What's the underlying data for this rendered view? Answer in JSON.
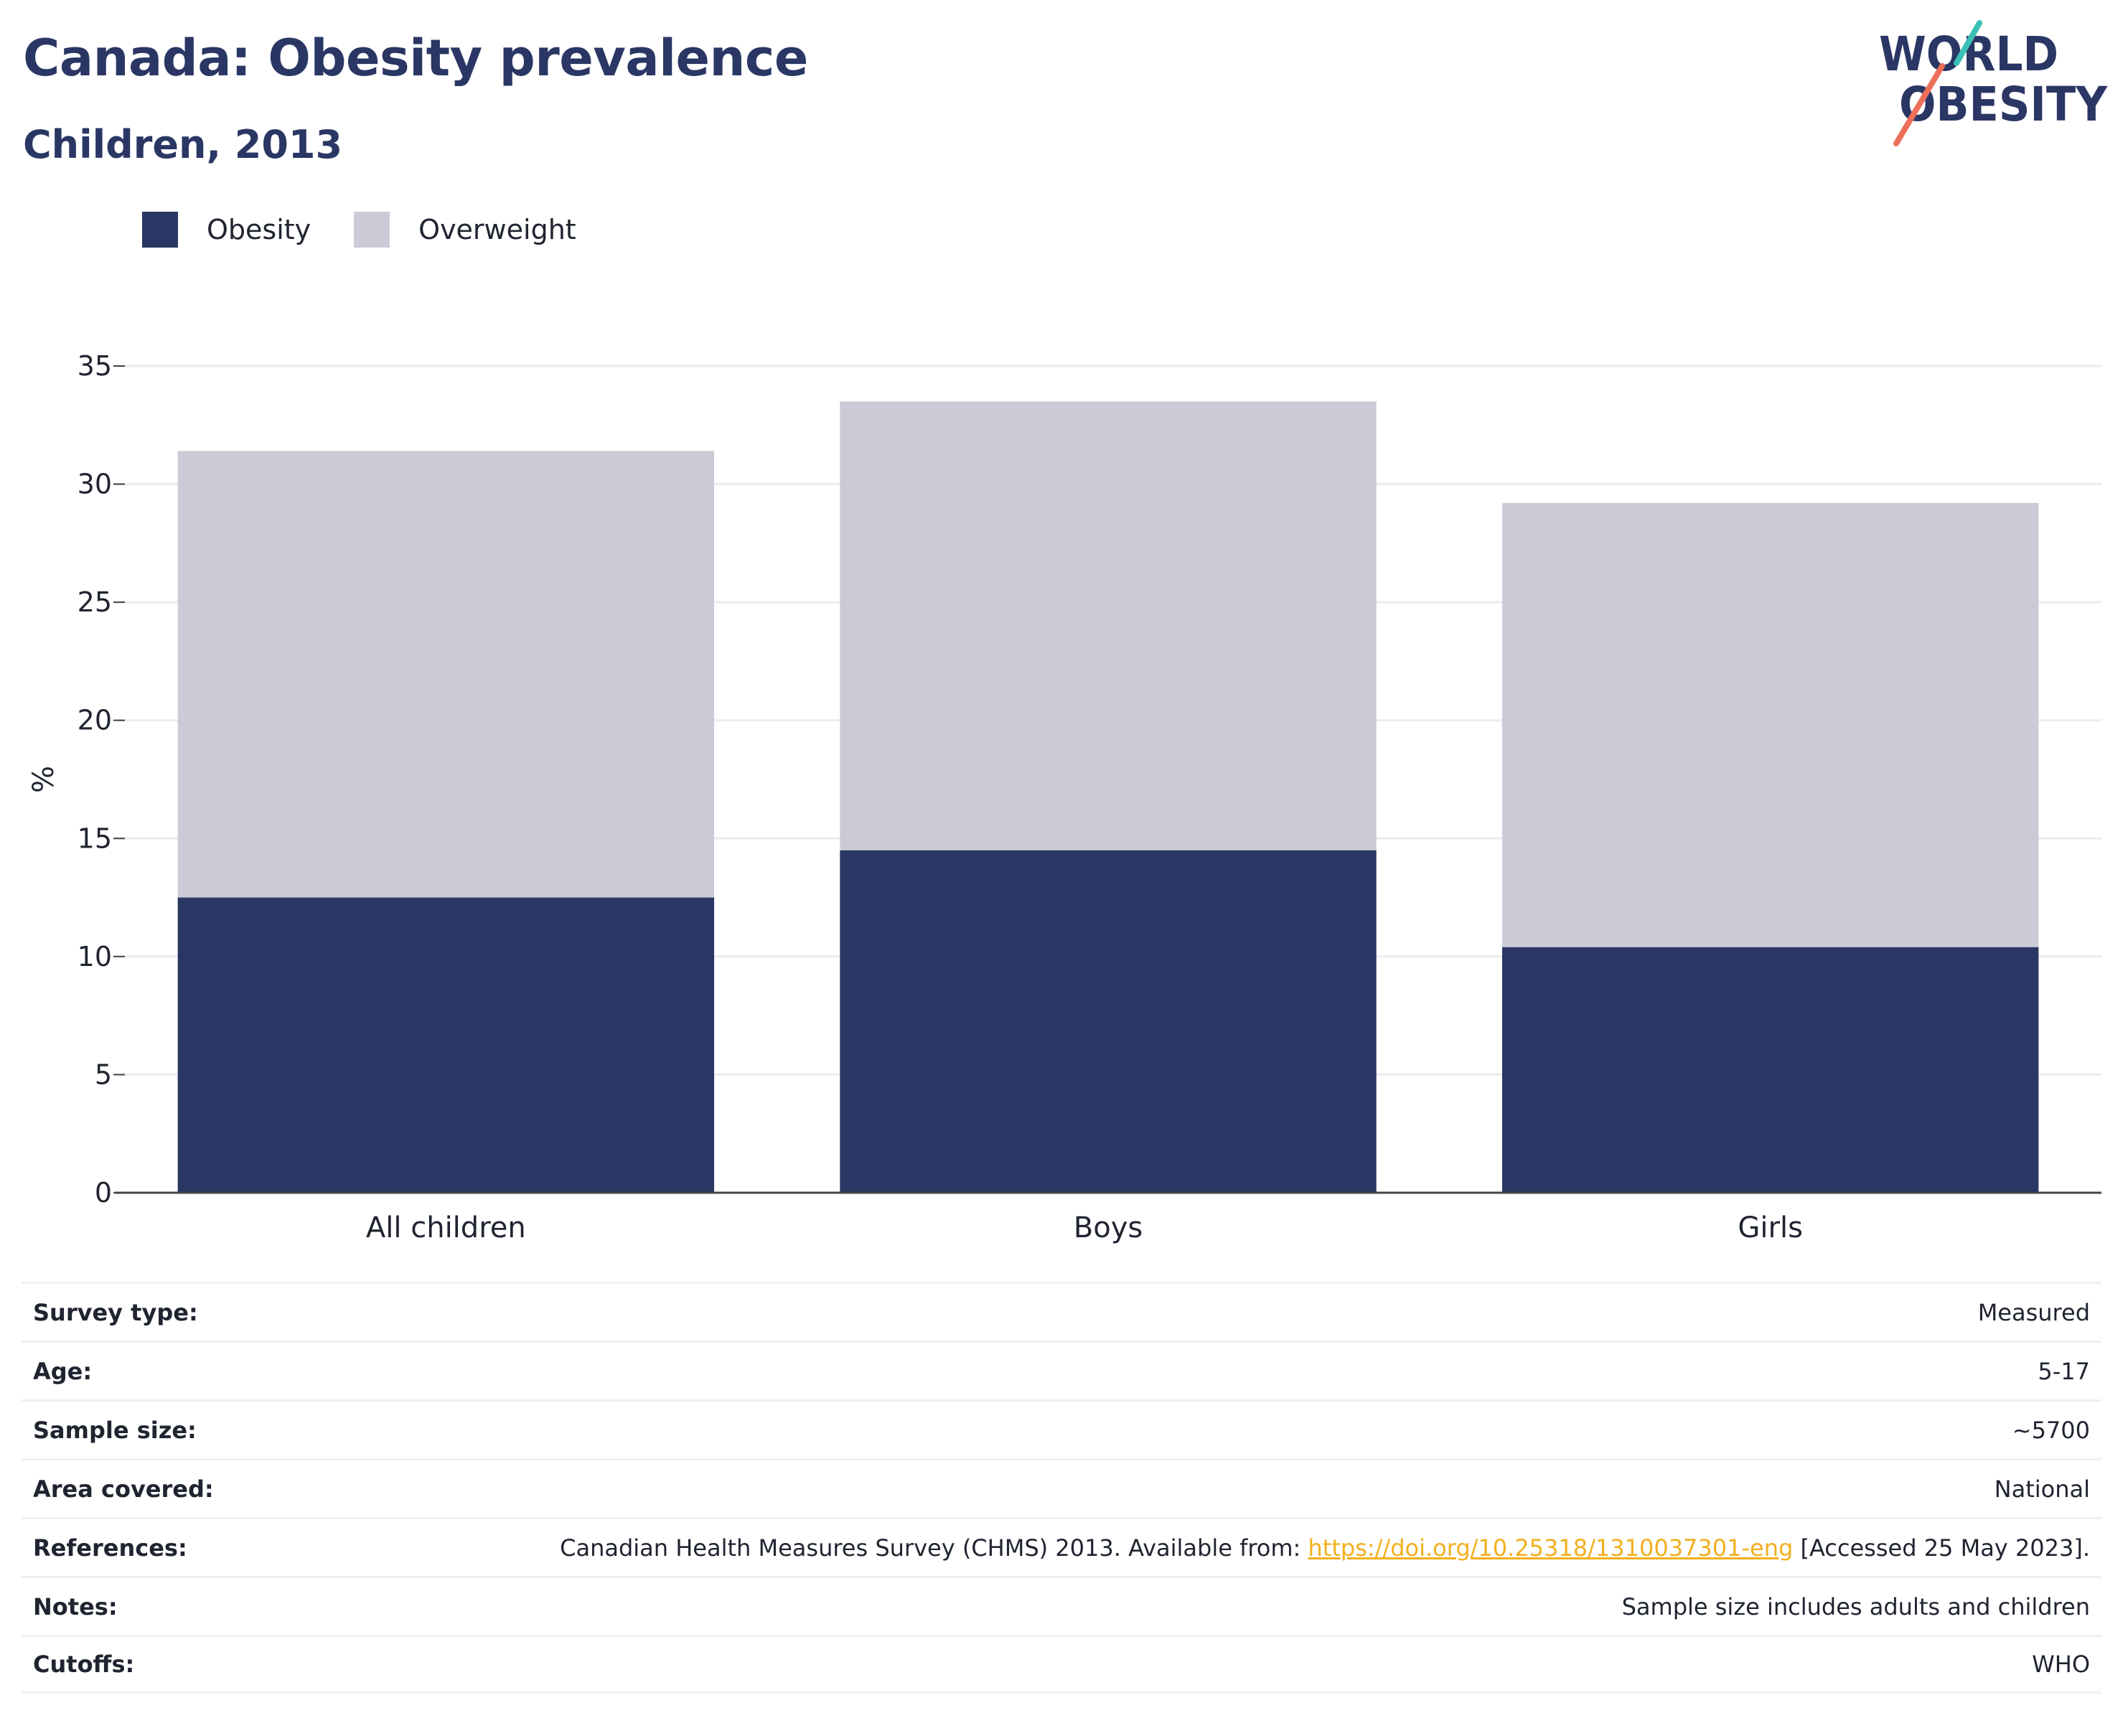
{
  "header": {
    "title": "Canada: Obesity prevalence",
    "subtitle": "Children, 2013",
    "logo_line1": "WORLD",
    "logo_line2": "OBESITY"
  },
  "legend": [
    {
      "label": "Obesity",
      "color": "#2a3664"
    },
    {
      "label": "Overweight",
      "color": "#cacbd6"
    }
  ],
  "chart_data": {
    "type": "bar",
    "stacked": true,
    "categories": [
      "All children",
      "Boys",
      "Girls"
    ],
    "series": [
      {
        "name": "Obesity",
        "color": "#2a3664",
        "values": [
          12.5,
          14.5,
          10.4
        ]
      },
      {
        "name": "Overweight",
        "color": "#cacbd6",
        "values": [
          18.9,
          19.0,
          18.8
        ]
      }
    ],
    "ylabel": "%",
    "xlabel": "",
    "ylim": [
      0,
      35
    ],
    "yticks": [
      0,
      5,
      10,
      15,
      20,
      25,
      30,
      35
    ],
    "grid": true,
    "legend_position": "top-left"
  },
  "info": {
    "rows": [
      {
        "key": "Survey type:",
        "value": "Measured"
      },
      {
        "key": "Age:",
        "value": "5-17"
      },
      {
        "key": "Sample size:",
        "value": "~5700"
      },
      {
        "key": "Area covered:",
        "value": "National"
      },
      {
        "key": "References:",
        "value_prefix": "Canadian Health Measures Survey (CHMS) 2013. Available from: ",
        "link": "https://doi.org/10.25318/1310037301-eng",
        "value_suffix": " [Accessed 25 May 2023]."
      },
      {
        "key": "Notes:",
        "value": "Sample size includes adults and children"
      },
      {
        "key": "Cutoffs:",
        "value": "WHO"
      }
    ]
  }
}
